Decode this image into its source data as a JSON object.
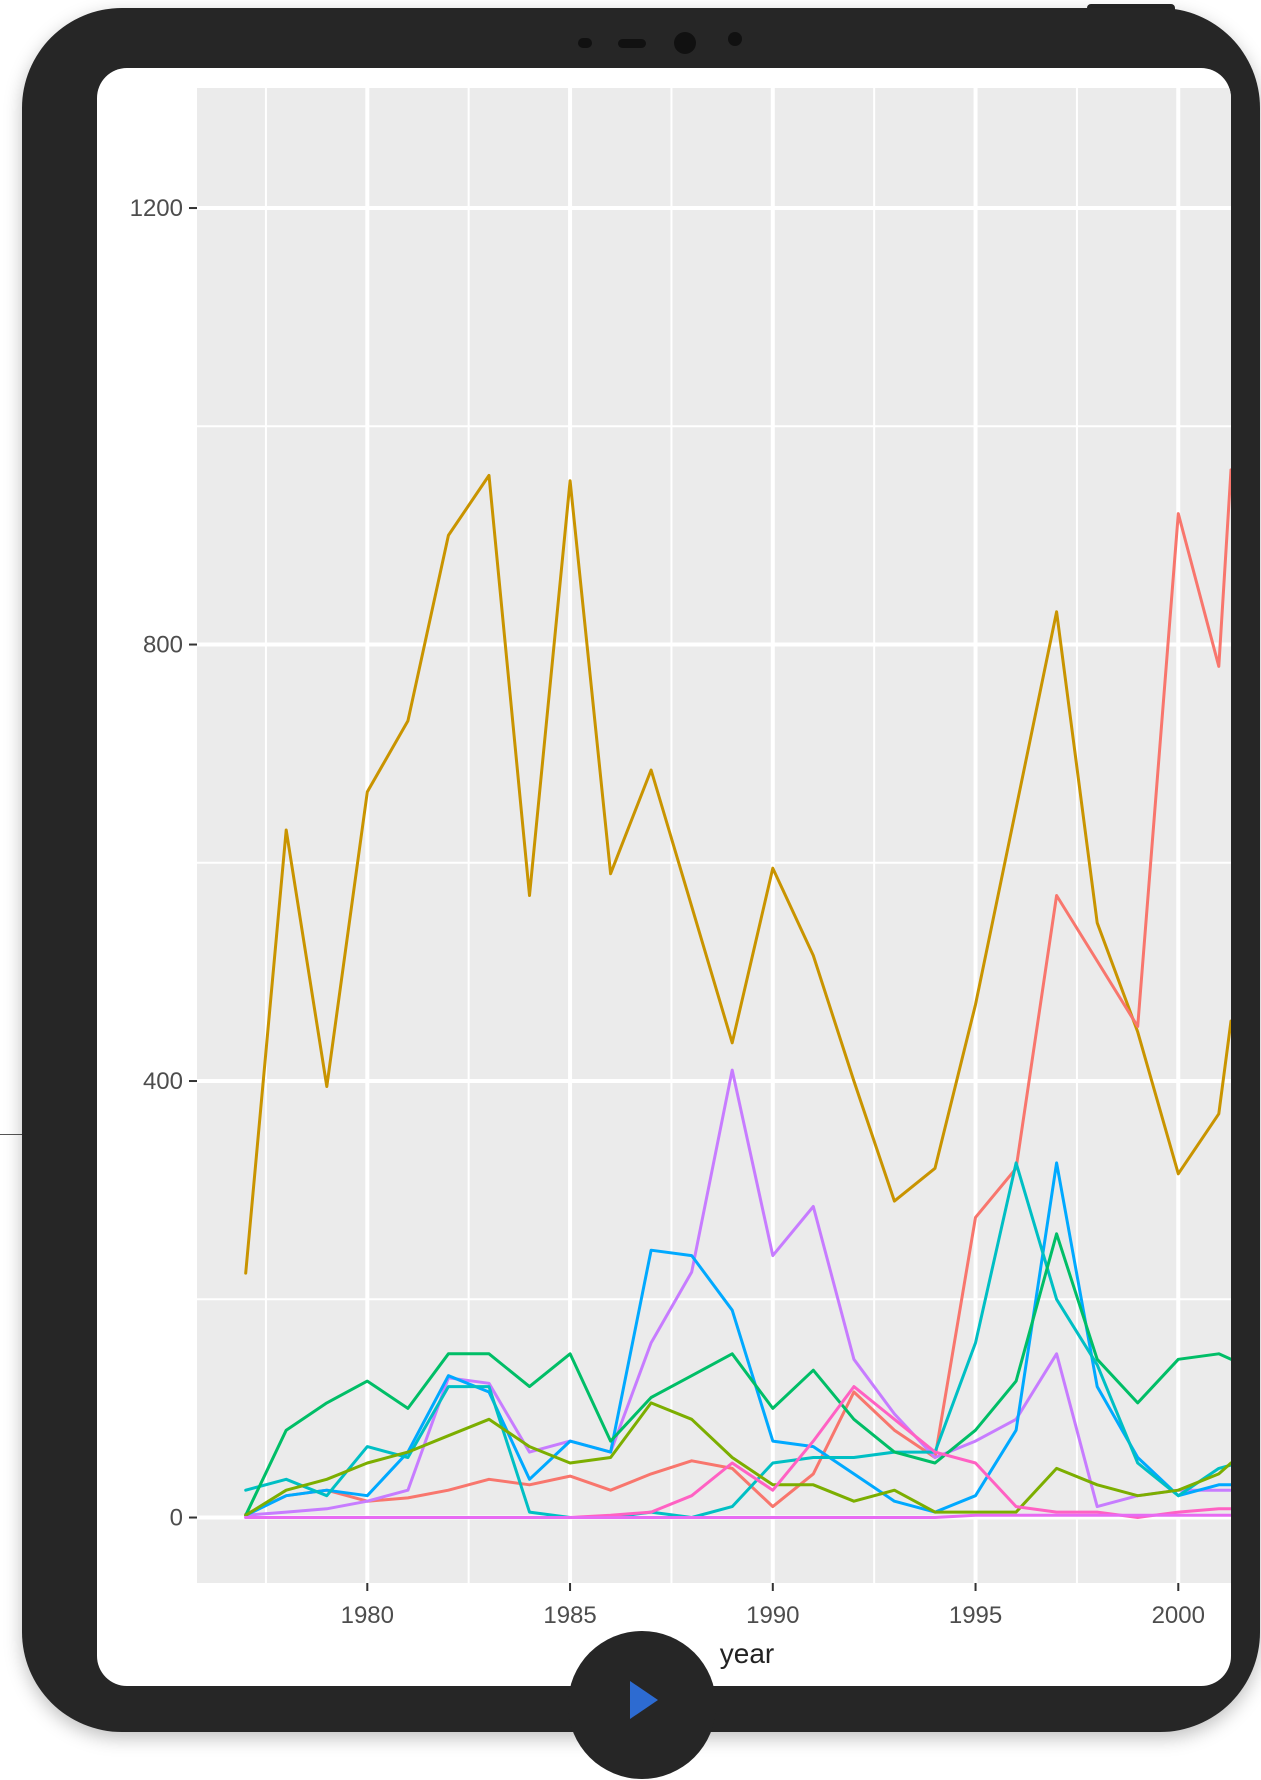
{
  "colors": {
    "device_frame": "#262626",
    "panel_background": "#ebebeb",
    "gridline": "#ffffff",
    "play_icon": "#2d6bd1"
  },
  "controls": {
    "play_icon_name": "play-icon"
  },
  "chart_data": {
    "type": "line",
    "title": "",
    "xlabel": "year",
    "ylabel": "",
    "xlim": [
      1975.8,
      2001.3
    ],
    "ylim": [
      -60,
      1310
    ],
    "x_ticks": [
      1980,
      1985,
      1990,
      1995,
      2000
    ],
    "y_ticks": [
      0,
      400,
      800,
      1200
    ],
    "x": [
      1977,
      1978,
      1979,
      1980,
      1981,
      1982,
      1983,
      1984,
      1985,
      1986,
      1987,
      1988,
      1989,
      1990,
      1991,
      1992,
      1993,
      1994,
      1995,
      1996,
      1997,
      1998,
      1999,
      2000,
      2001,
      2001.3
    ],
    "grid": true,
    "legend": "none",
    "series": [
      {
        "color": "#c99400",
        "values": [
          224,
          630,
          395,
          665,
          730,
          900,
          955,
          570,
          950,
          590,
          685,
          560,
          435,
          595,
          515,
          400,
          290,
          320,
          470,
          650,
          830,
          545,
          445,
          315,
          370,
          455
        ]
      },
      {
        "color": "#f8766d",
        "values": [
          3,
          20,
          25,
          15,
          18,
          25,
          35,
          30,
          38,
          25,
          40,
          52,
          45,
          10,
          40,
          115,
          80,
          55,
          275,
          320,
          570,
          510,
          450,
          920,
          780,
          960
        ]
      },
      {
        "color": "#c77cff",
        "values": [
          2,
          5,
          8,
          15,
          25,
          128,
          123,
          60,
          70,
          60,
          160,
          225,
          410,
          240,
          285,
          145,
          95,
          55,
          70,
          90,
          150,
          10,
          20,
          25,
          25,
          25
        ]
      },
      {
        "color": "#00a9ff",
        "values": [
          2,
          20,
          25,
          20,
          60,
          130,
          115,
          35,
          70,
          60,
          245,
          240,
          190,
          70,
          65,
          40,
          15,
          5,
          20,
          80,
          325,
          120,
          55,
          20,
          30,
          30
        ]
      },
      {
        "color": "#00bfc4",
        "values": [
          25,
          35,
          20,
          65,
          55,
          120,
          120,
          5,
          0,
          0,
          5,
          0,
          10,
          50,
          55,
          55,
          60,
          60,
          160,
          325,
          200,
          140,
          50,
          20,
          45,
          48
        ]
      },
      {
        "color": "#00be67",
        "values": [
          2,
          80,
          105,
          125,
          100,
          150,
          150,
          120,
          150,
          70,
          110,
          130,
          150,
          100,
          135,
          90,
          60,
          50,
          80,
          125,
          260,
          145,
          105,
          145,
          150,
          145
        ]
      },
      {
        "color": "#7cae00",
        "values": [
          2,
          25,
          35,
          50,
          60,
          75,
          90,
          65,
          50,
          55,
          105,
          90,
          55,
          30,
          30,
          15,
          25,
          5,
          5,
          5,
          45,
          30,
          20,
          25,
          40,
          50
        ]
      },
      {
        "color": "#ff61c3",
        "values": [
          0,
          0,
          0,
          0,
          0,
          0,
          0,
          0,
          0,
          2,
          5,
          20,
          50,
          25,
          70,
          120,
          90,
          60,
          50,
          10,
          5,
          5,
          0,
          5,
          8,
          8
        ]
      },
      {
        "color": "#e76bf3",
        "values": [
          0,
          0,
          0,
          0,
          0,
          0,
          0,
          0,
          0,
          0,
          0,
          0,
          0,
          0,
          0,
          0,
          0,
          0,
          2,
          2,
          2,
          2,
          2,
          2,
          2,
          2
        ]
      }
    ]
  }
}
